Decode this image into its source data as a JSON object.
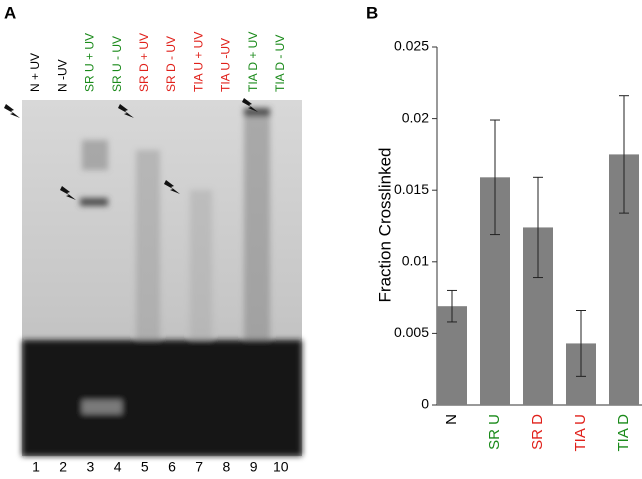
{
  "panel_labels": [
    "A",
    "B"
  ],
  "gel": {
    "lanes": [
      {
        "label": "N + UV",
        "number": "1",
        "color": "#000000"
      },
      {
        "label": "N -UV",
        "number": "2",
        "color": "#000000"
      },
      {
        "label": "SR U + UV",
        "number": "3",
        "color": "#1a8a1a"
      },
      {
        "label": "SR U - UV",
        "number": "4",
        "color": "#1a8a1a"
      },
      {
        "label": "SR D + UV",
        "number": "5",
        "color": "#e0201a"
      },
      {
        "label": "SR D - UV",
        "number": "6",
        "color": "#e0201a"
      },
      {
        "label": "TIA U + UV",
        "number": "7",
        "color": "#e0201a"
      },
      {
        "label": "TIA U -UV",
        "number": "8",
        "color": "#e0201a"
      },
      {
        "label": "TIA D + UV",
        "number": "9",
        "color": "#1a8a1a"
      },
      {
        "label": "TIA D - UV",
        "number": "10",
        "color": "#1a8a1a"
      }
    ]
  },
  "chart_data": {
    "type": "bar",
    "y_label": "Fraction Crosslinked",
    "categories": [
      "N",
      "SR U",
      "SR D",
      "TIA U",
      "TIA D"
    ],
    "category_colors": [
      "#000000",
      "#1a8a1a",
      "#e0201a",
      "#e0201a",
      "#1a8a1a"
    ],
    "values": [
      0.0069,
      0.0159,
      0.0124,
      0.0043,
      0.0175
    ],
    "errors": [
      0.0011,
      0.004,
      0.0035,
      0.0023,
      0.0041
    ],
    "color": "#808080",
    "ylim": [
      0,
      0.025
    ],
    "yticks": [
      0,
      0.005,
      0.01,
      0.015,
      0.02,
      0.025
    ]
  }
}
